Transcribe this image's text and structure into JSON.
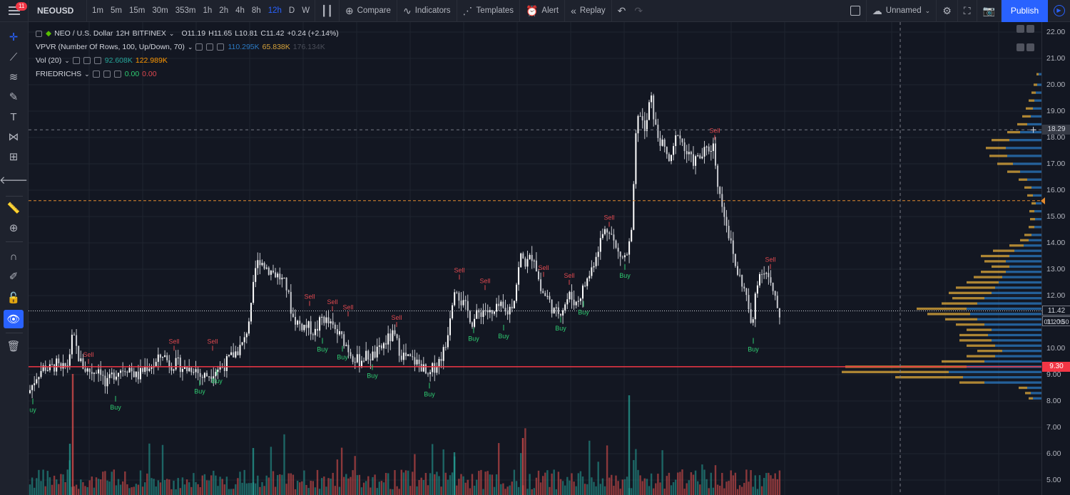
{
  "toolbar": {
    "notification_count": "11",
    "symbol": "NEOUSD",
    "intervals": [
      "1m",
      "5m",
      "15m",
      "30m",
      "353m",
      "1h",
      "2h",
      "4h",
      "8h",
      "12h",
      "D",
      "W"
    ],
    "active_interval": "12h",
    "compare": "Compare",
    "indicators": "Indicators",
    "templates": "Templates",
    "alert": "Alert",
    "replay": "Replay",
    "layout_name": "Unnamed",
    "publish": "Publish"
  },
  "legend": {
    "main": {
      "title": "NEO / U.S. Dollar",
      "interval": "12H",
      "exchange": "BITFINEX",
      "open": "O11.19",
      "high": "H11.65",
      "low": "L10.81",
      "close": "C11.42",
      "change": "+0.24 (+2.14%)"
    },
    "vpvr": {
      "name": "VPVR (Number Of Rows, 100, Up/Down, 70)",
      "v1": "110.295K",
      "v2": "65.838K",
      "v3": "176.134K"
    },
    "vol": {
      "name": "Vol (20)",
      "v1": "92.608K",
      "v2": "122.989K"
    },
    "friedrichs": {
      "name": "FRIEDRICHS",
      "v1": "0.00",
      "v2": "0.00"
    }
  },
  "price_axis": {
    "ticks": [
      "22.00",
      "21.00",
      "20.00",
      "19.00",
      "18.00",
      "17.00",
      "16.00",
      "15.00",
      "14.00",
      "13.00",
      "12.00",
      "11.00",
      "10.00",
      "9.00",
      "8.00",
      "7.00",
      "6.00",
      "5.00"
    ],
    "crosshair_price": "18.29",
    "last_price": "11.42",
    "countdown": "01:20:50",
    "support_price": "9.30"
  },
  "signals": {
    "buy": "Buy",
    "sell": "Sell",
    "partial_buy": "uy"
  },
  "colors": {
    "background": "#131722",
    "accent": "#2962ff",
    "up": "#26a69a",
    "down": "#ef5350",
    "vp_up": "#2b79c2",
    "vp_down": "#d6a23a",
    "support_line": "#f23645",
    "level_line": "#e38a2e",
    "buy_text": "#2ecc71",
    "sell_text": "#e0484f"
  },
  "chart_data": {
    "type": "candlestick",
    "symbol": "NEOUSD",
    "interval": "12H",
    "exchange": "BITFINEX",
    "ylim": [
      4.6,
      22.3
    ],
    "price_lines": {
      "support": 9.3,
      "level": 15.6,
      "crosshair": 18.29,
      "last": 11.42
    },
    "close_path": [
      [
        0,
        8.3
      ],
      [
        12,
        9.0
      ],
      [
        22,
        9.3
      ],
      [
        30,
        9.2
      ],
      [
        40,
        9.4
      ],
      [
        45,
        9.1
      ],
      [
        55,
        9.4
      ],
      [
        62,
        10.5
      ],
      [
        72,
        9.5
      ],
      [
        80,
        9.2
      ],
      [
        90,
        9.1
      ],
      [
        100,
        9.3
      ],
      [
        108,
        8.5
      ],
      [
        118,
        9.0
      ],
      [
        128,
        9.2
      ],
      [
        140,
        9.3
      ],
      [
        152,
        8.9
      ],
      [
        165,
        9.3
      ],
      [
        178,
        9.4
      ],
      [
        188,
        9.8
      ],
      [
        198,
        9.4
      ],
      [
        210,
        9.4
      ],
      [
        220,
        9.2
      ],
      [
        232,
        9.3
      ],
      [
        242,
        8.9
      ],
      [
        252,
        9.0
      ],
      [
        262,
        9.2
      ],
      [
        272,
        9.3
      ],
      [
        282,
        9.6
      ],
      [
        292,
        9.9
      ],
      [
        302,
        10.2
      ],
      [
        312,
        11.5
      ],
      [
        318,
        13.0
      ],
      [
        324,
        13.4
      ],
      [
        332,
        13.1
      ],
      [
        342,
        12.9
      ],
      [
        352,
        12.7
      ],
      [
        362,
        12.3
      ],
      [
        370,
        11.2
      ],
      [
        380,
        10.9
      ],
      [
        392,
        10.8
      ],
      [
        402,
        10.6
      ],
      [
        412,
        11.2
      ],
      [
        422,
        10.9
      ],
      [
        432,
        10.6
      ],
      [
        442,
        10.3
      ],
      [
        452,
        9.8
      ],
      [
        462,
        9.5
      ],
      [
        472,
        9.7
      ],
      [
        482,
        9.7
      ],
      [
        492,
        9.9
      ],
      [
        502,
        10.3
      ],
      [
        512,
        10.5
      ],
      [
        522,
        9.8
      ],
      [
        532,
        9.6
      ],
      [
        542,
        9.5
      ],
      [
        552,
        9.3
      ],
      [
        560,
        8.8
      ],
      [
        566,
        9.2
      ],
      [
        575,
        9.5
      ],
      [
        585,
        10.1
      ],
      [
        592,
        11.5
      ],
      [
        598,
        12.5
      ],
      [
        606,
        11.8
      ],
      [
        614,
        11.5
      ],
      [
        622,
        11.0
      ],
      [
        630,
        11.3
      ],
      [
        640,
        11.5
      ],
      [
        650,
        11.2
      ],
      [
        660,
        11.6
      ],
      [
        670,
        11.3
      ],
      [
        680,
        11.8
      ],
      [
        690,
        13.5
      ],
      [
        698,
        13.2
      ],
      [
        708,
        13.6
      ],
      [
        718,
        12.2
      ],
      [
        728,
        11.9
      ],
      [
        738,
        11.3
      ],
      [
        748,
        11.5
      ],
      [
        758,
        12.0
      ],
      [
        768,
        11.7
      ],
      [
        778,
        12.3
      ],
      [
        788,
        12.9
      ],
      [
        798,
        13.8
      ],
      [
        806,
        14.4
      ],
      [
        814,
        14.6
      ],
      [
        824,
        13.7
      ],
      [
        834,
        13.4
      ],
      [
        840,
        13.6
      ],
      [
        846,
        14.5
      ],
      [
        852,
        18.4
      ],
      [
        858,
        19.0
      ],
      [
        864,
        18.1
      ],
      [
        872,
        19.6
      ],
      [
        880,
        18.2
      ],
      [
        890,
        17.6
      ],
      [
        900,
        17.0
      ],
      [
        910,
        18.3
      ],
      [
        920,
        17.5
      ],
      [
        930,
        17.1
      ],
      [
        940,
        17.2
      ],
      [
        950,
        17.5
      ],
      [
        960,
        17.7
      ],
      [
        968,
        15.9
      ],
      [
        976,
        15.1
      ],
      [
        984,
        14.0
      ],
      [
        992,
        13.0
      ],
      [
        1000,
        12.5
      ],
      [
        1008,
        11.8
      ],
      [
        1014,
        10.5
      ],
      [
        1020,
        12.5
      ],
      [
        1028,
        13.0
      ],
      [
        1036,
        12.8
      ],
      [
        1044,
        12.0
      ],
      [
        1054,
        11.2
      ]
    ],
    "volume_profile": [
      [
        8.1,
        12,
        6
      ],
      [
        8.3,
        15,
        8
      ],
      [
        8.5,
        20,
        12
      ],
      [
        8.7,
        80,
        35
      ],
      [
        8.9,
        110,
        95
      ],
      [
        9.1,
        130,
        150
      ],
      [
        9.3,
        105,
        170
      ],
      [
        9.5,
        80,
        60
      ],
      [
        9.7,
        65,
        40
      ],
      [
        9.9,
        55,
        35
      ],
      [
        10.1,
        65,
        40
      ],
      [
        10.3,
        70,
        45
      ],
      [
        10.5,
        75,
        40
      ],
      [
        10.7,
        70,
        35
      ],
      [
        10.9,
        80,
        40
      ],
      [
        11.1,
        90,
        45
      ],
      [
        11.3,
        100,
        60
      ],
      [
        11.5,
        105,
        70
      ],
      [
        11.7,
        90,
        50
      ],
      [
        11.9,
        80,
        45
      ],
      [
        12.1,
        70,
        60
      ],
      [
        12.3,
        65,
        55
      ],
      [
        12.5,
        60,
        45
      ],
      [
        12.7,
        55,
        40
      ],
      [
        12.9,
        50,
        35
      ],
      [
        13.1,
        45,
        25
      ],
      [
        13.3,
        50,
        30
      ],
      [
        13.5,
        45,
        40
      ],
      [
        13.7,
        38,
        30
      ],
      [
        13.9,
        25,
        20
      ],
      [
        14.1,
        18,
        12
      ],
      [
        14.3,
        14,
        10
      ],
      [
        14.6,
        10,
        8
      ],
      [
        14.9,
        9,
        7
      ],
      [
        15.2,
        10,
        7
      ],
      [
        15.5,
        8,
        6
      ],
      [
        15.8,
        12,
        8
      ],
      [
        16.1,
        14,
        10
      ],
      [
        16.4,
        20,
        12
      ],
      [
        16.7,
        30,
        18
      ],
      [
        17.0,
        40,
        22
      ],
      [
        17.3,
        48,
        25
      ],
      [
        17.6,
        50,
        28
      ],
      [
        17.9,
        45,
        25
      ],
      [
        18.2,
        30,
        18
      ],
      [
        18.5,
        20,
        14
      ],
      [
        18.8,
        15,
        12
      ],
      [
        19.1,
        12,
        10
      ],
      [
        19.4,
        10,
        8
      ],
      [
        19.7,
        8,
        6
      ],
      [
        20.0,
        6,
        5
      ],
      [
        20.4,
        4,
        3
      ]
    ],
    "signals": [
      [
        6,
        8.2,
        "buy"
      ],
      [
        84,
        9.3,
        "sell"
      ],
      [
        122,
        8.3,
        "buy"
      ],
      [
        204,
        9.8,
        "sell"
      ],
      [
        240,
        8.9,
        "buy"
      ],
      [
        264,
        9.3,
        "buy"
      ],
      [
        258,
        9.8,
        "sell"
      ],
      [
        394,
        11.5,
        "sell"
      ],
      [
        412,
        10.5,
        "buy"
      ],
      [
        426,
        11.3,
        "sell"
      ],
      [
        440,
        10.2,
        "buy"
      ],
      [
        448,
        11.1,
        "sell"
      ],
      [
        482,
        9.5,
        "buy"
      ],
      [
        516,
        10.7,
        "sell"
      ],
      [
        562,
        8.8,
        "buy"
      ],
      [
        604,
        12.5,
        "sell"
      ],
      [
        624,
        10.9,
        "buy"
      ],
      [
        640,
        12.1,
        "sell"
      ],
      [
        666,
        11.0,
        "buy"
      ],
      [
        722,
        12.6,
        "sell"
      ],
      [
        746,
        11.3,
        "buy"
      ],
      [
        758,
        12.3,
        "sell"
      ],
      [
        778,
        11.9,
        "buy"
      ],
      [
        814,
        14.5,
        "sell"
      ],
      [
        836,
        13.3,
        "buy"
      ],
      [
        962,
        17.8,
        "sell"
      ],
      [
        1016,
        10.5,
        "buy"
      ],
      [
        1040,
        12.9,
        "sell"
      ]
    ]
  }
}
